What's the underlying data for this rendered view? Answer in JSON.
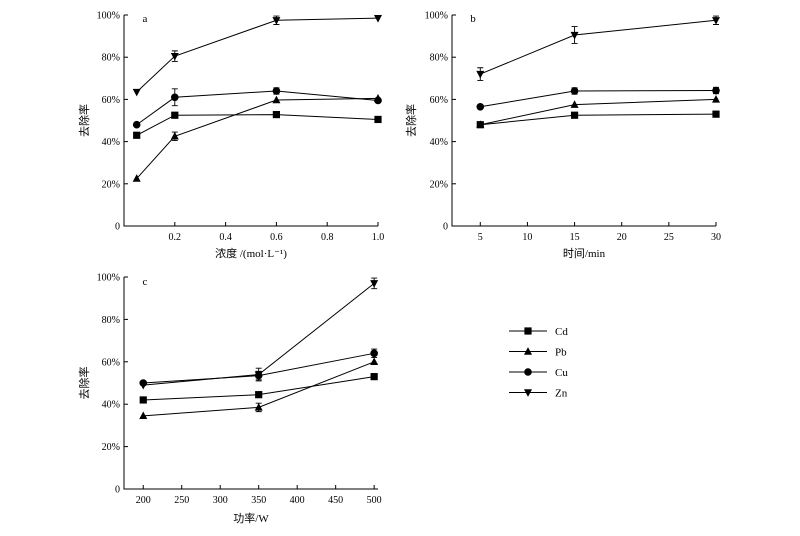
{
  "legend": {
    "items": [
      {
        "name": "Cd",
        "marker": "square"
      },
      {
        "name": "Pb",
        "marker": "triangle-up"
      },
      {
        "name": "Cu",
        "marker": "circle"
      },
      {
        "name": "Zn",
        "marker": "triangle-down"
      }
    ]
  },
  "chart_data": [
    {
      "panel": "a",
      "type": "line",
      "xlabel": "浓度 /(mol·L⁻¹)",
      "ylabel": "去除率",
      "xlim": [
        0.0,
        1.0
      ],
      "ylim": [
        0,
        1.0
      ],
      "xticks": [
        0.2,
        0.4,
        0.6,
        0.8,
        1.0
      ],
      "xtick_labels": [
        "0.2",
        "0.4",
        "0.6",
        "0.8",
        "1.0"
      ],
      "yticks": [
        0,
        0.2,
        0.4,
        0.6,
        0.8,
        1.0
      ],
      "ytick_labels": [
        "0",
        "20%",
        "40%",
        "60%",
        "80%",
        "100%"
      ],
      "x": [
        0.05,
        0.2,
        0.6,
        1.0
      ],
      "series": [
        {
          "name": "Cd",
          "marker": "square",
          "values": [
            0.43,
            0.525,
            0.528,
            0.505
          ],
          "errors": [
            0,
            0,
            0,
            0
          ]
        },
        {
          "name": "Pb",
          "marker": "triangle-up",
          "values": [
            0.225,
            0.425,
            0.597,
            0.605
          ],
          "errors": [
            0,
            0.02,
            0,
            0
          ]
        },
        {
          "name": "Cu",
          "marker": "circle",
          "values": [
            0.48,
            0.61,
            0.64,
            0.595
          ],
          "errors": [
            0,
            0.04,
            0.015,
            0
          ]
        },
        {
          "name": "Zn",
          "marker": "triangle-down",
          "values": [
            0.635,
            0.805,
            0.975,
            0.985
          ],
          "errors": [
            0,
            0.025,
            0.02,
            0
          ]
        }
      ]
    },
    {
      "panel": "b",
      "type": "line",
      "xlabel": "时间/min",
      "ylabel": "去除率",
      "xlim": [
        2,
        30
      ],
      "ylim": [
        0,
        1.0
      ],
      "xticks": [
        5,
        10,
        15,
        20,
        25,
        30
      ],
      "xtick_labels": [
        "5",
        "10",
        "15",
        "20",
        "25",
        "30"
      ],
      "yticks": [
        0,
        0.2,
        0.4,
        0.6,
        0.8,
        1.0
      ],
      "ytick_labels": [
        "0",
        "20%",
        "40%",
        "60%",
        "80%",
        "100%"
      ],
      "x": [
        5,
        15,
        30
      ],
      "series": [
        {
          "name": "Cd",
          "marker": "square",
          "values": [
            0.48,
            0.525,
            0.53
          ],
          "errors": [
            0,
            0,
            0
          ]
        },
        {
          "name": "Pb",
          "marker": "triangle-up",
          "values": [
            0.48,
            0.575,
            0.6
          ],
          "errors": [
            0,
            0,
            0
          ]
        },
        {
          "name": "Cu",
          "marker": "circle",
          "values": [
            0.565,
            0.64,
            0.642
          ],
          "errors": [
            0,
            0.015,
            0.015
          ]
        },
        {
          "name": "Zn",
          "marker": "triangle-down",
          "values": [
            0.72,
            0.905,
            0.975
          ],
          "errors": [
            0.03,
            0.04,
            0.02
          ]
        }
      ]
    },
    {
      "panel": "c",
      "type": "line",
      "xlabel": "功率/W",
      "ylabel": "去除率",
      "xlim": [
        175,
        505
      ],
      "ylim": [
        0,
        1.0
      ],
      "xticks": [
        200,
        250,
        300,
        350,
        400,
        450,
        500
      ],
      "xtick_labels": [
        "200",
        "250",
        "300",
        "350",
        "400",
        "450",
        "500"
      ],
      "yticks": [
        0,
        0.2,
        0.4,
        0.6,
        0.8,
        1.0
      ],
      "ytick_labels": [
        "0",
        "20%",
        "40%",
        "60%",
        "80%",
        "100%"
      ],
      "x": [
        200,
        350,
        500
      ],
      "series": [
        {
          "name": "Cd",
          "marker": "square",
          "values": [
            0.42,
            0.445,
            0.53
          ],
          "errors": [
            0,
            0,
            0
          ]
        },
        {
          "name": "Pb",
          "marker": "triangle-up",
          "values": [
            0.345,
            0.385,
            0.6
          ],
          "errors": [
            0,
            0.02,
            0
          ]
        },
        {
          "name": "Cu",
          "marker": "circle",
          "values": [
            0.5,
            0.535,
            0.64
          ],
          "errors": [
            0,
            0.02,
            0.02
          ]
        },
        {
          "name": "Zn",
          "marker": "triangle-down",
          "values": [
            0.49,
            0.54,
            0.97
          ],
          "errors": [
            0,
            0.03,
            0.025
          ]
        }
      ]
    }
  ]
}
